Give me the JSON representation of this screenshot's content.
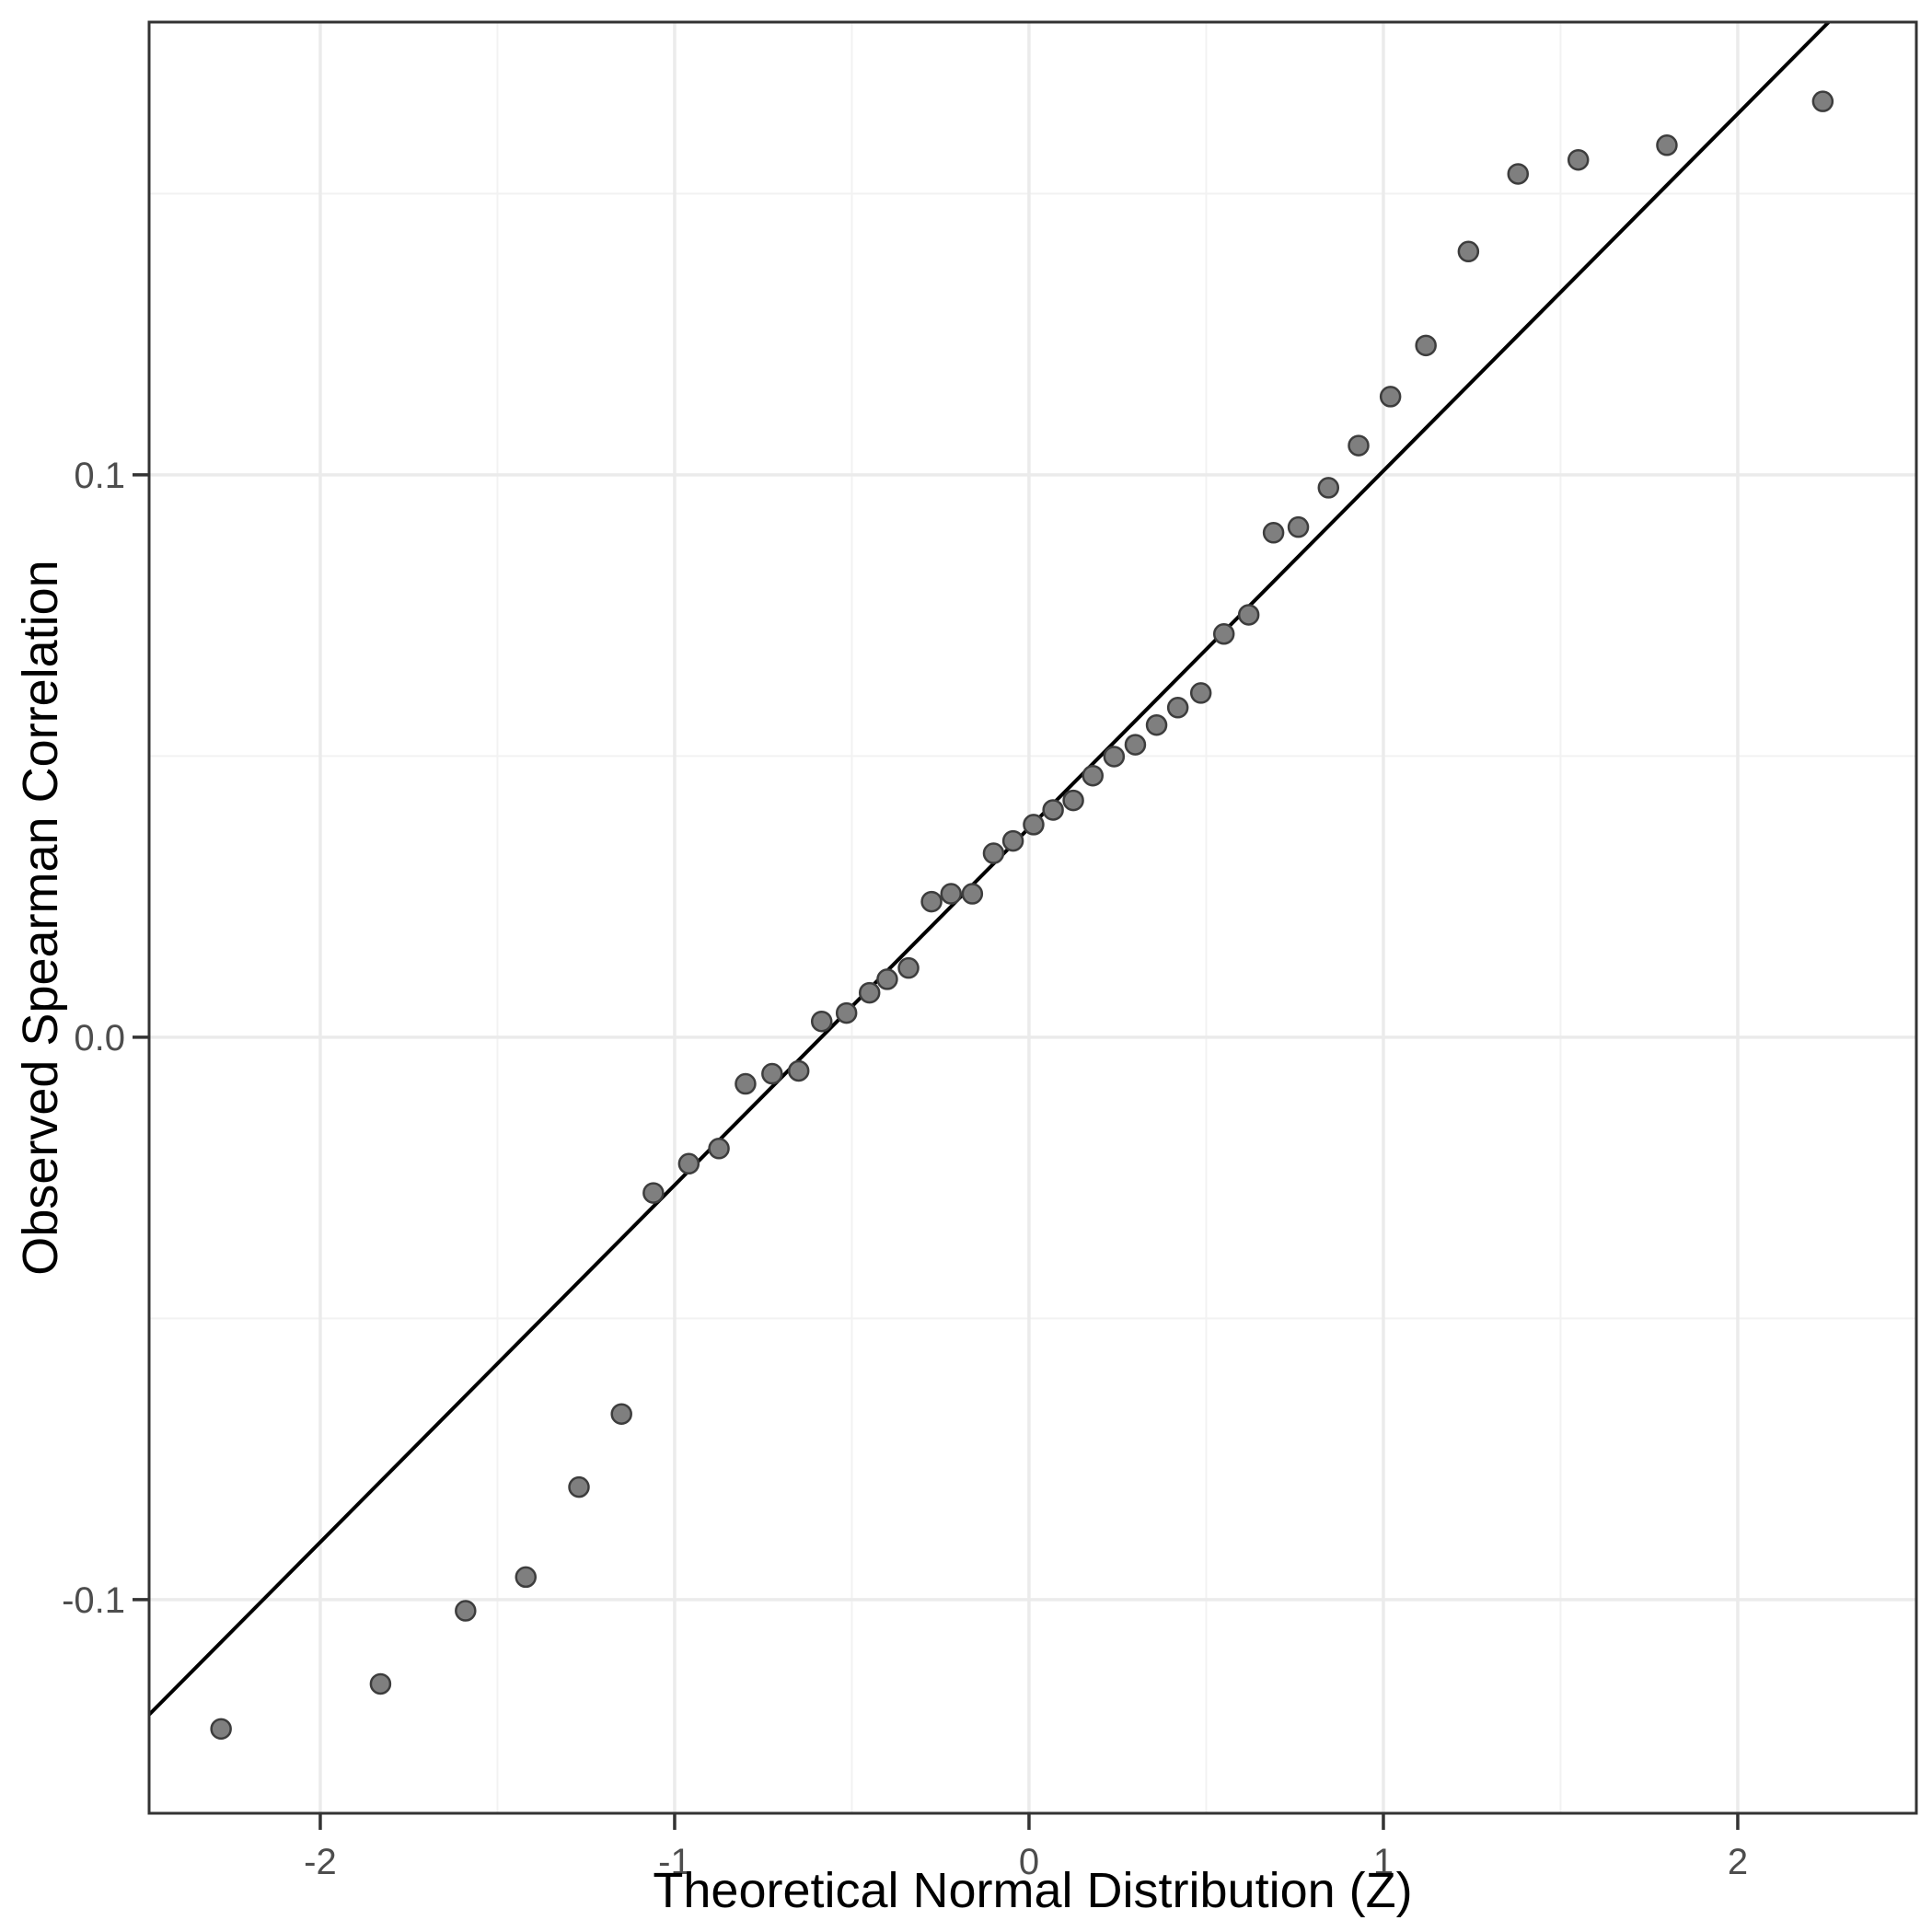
{
  "chart_data": {
    "type": "scatter",
    "title": "",
    "xlabel": "Theoretical Normal Distribution (Z)",
    "ylabel": "Observed Spearman Correlation",
    "xlim": [
      -2.483,
      2.504
    ],
    "ylim": [
      -0.138,
      0.1805
    ],
    "grid": "major-and-minor",
    "legend": "none",
    "x_ticks": [
      {
        "value": -2,
        "label": "-2"
      },
      {
        "value": -1,
        "label": "-1"
      },
      {
        "value": 0,
        "label": "0"
      },
      {
        "value": 1,
        "label": "1"
      },
      {
        "value": 2,
        "label": "2"
      }
    ],
    "y_ticks": [
      {
        "value": -0.1,
        "label": "-0.1"
      },
      {
        "value": 0.0,
        "label": "0.0"
      },
      {
        "value": 0.1,
        "label": "0.1"
      }
    ],
    "x_minor": [
      -1.5,
      -0.5,
      0.5,
      1.5
    ],
    "y_minor": [
      0.15,
      0.05,
      -0.05
    ],
    "ref_line": {
      "slope": 0.0635,
      "intercept": 0.0372
    },
    "points": [
      [
        -2.28,
        -0.123
      ],
      [
        -1.83,
        -0.115
      ],
      [
        -1.59,
        -0.102
      ],
      [
        -1.42,
        -0.096
      ],
      [
        -1.27,
        -0.08
      ],
      [
        -1.15,
        -0.067
      ],
      [
        -1.06,
        -0.0277
      ],
      [
        -0.96,
        -0.0225
      ],
      [
        -0.875,
        -0.0198
      ],
      [
        -0.8,
        -0.0083
      ],
      [
        -0.725,
        -0.0065
      ],
      [
        -0.65,
        -0.006
      ],
      [
        -0.585,
        0.0028
      ],
      [
        -0.515,
        0.0043
      ],
      [
        -0.45,
        0.0079
      ],
      [
        -0.4,
        0.0103
      ],
      [
        -0.34,
        0.0123
      ],
      [
        -0.275,
        0.0241
      ],
      [
        -0.22,
        0.0255
      ],
      [
        -0.16,
        0.0255
      ],
      [
        -0.1,
        0.0327
      ],
      [
        -0.045,
        0.0349
      ],
      [
        0.013,
        0.0378
      ],
      [
        0.068,
        0.0404
      ],
      [
        0.125,
        0.0421
      ],
      [
        0.18,
        0.0465
      ],
      [
        0.24,
        0.0499
      ],
      [
        0.3,
        0.052
      ],
      [
        0.36,
        0.0555
      ],
      [
        0.42,
        0.0586
      ],
      [
        0.485,
        0.0612
      ],
      [
        0.55,
        0.0717
      ],
      [
        0.62,
        0.0751
      ],
      [
        0.69,
        0.0897
      ],
      [
        0.76,
        0.0907
      ],
      [
        0.845,
        0.0977
      ],
      [
        0.93,
        0.1052
      ],
      [
        1.02,
        0.1139
      ],
      [
        1.12,
        0.123
      ],
      [
        1.24,
        0.1397
      ],
      [
        1.38,
        0.1535
      ],
      [
        1.55,
        0.156
      ],
      [
        1.8,
        0.1586
      ],
      [
        2.24,
        0.1664
      ]
    ],
    "colors": {
      "background": "#ffffff",
      "panel_background": "#ffffff",
      "panel_border": "#333333",
      "grid_major": "#ebebeb",
      "grid_minor": "#f2f2f2",
      "tick": "#333333",
      "tick_label": "#4d4d4d",
      "axis_title": "#000000",
      "point_fill": "#7f7f7f",
      "point_stroke": "#3d3d3d",
      "ref_line": "#000000"
    }
  }
}
